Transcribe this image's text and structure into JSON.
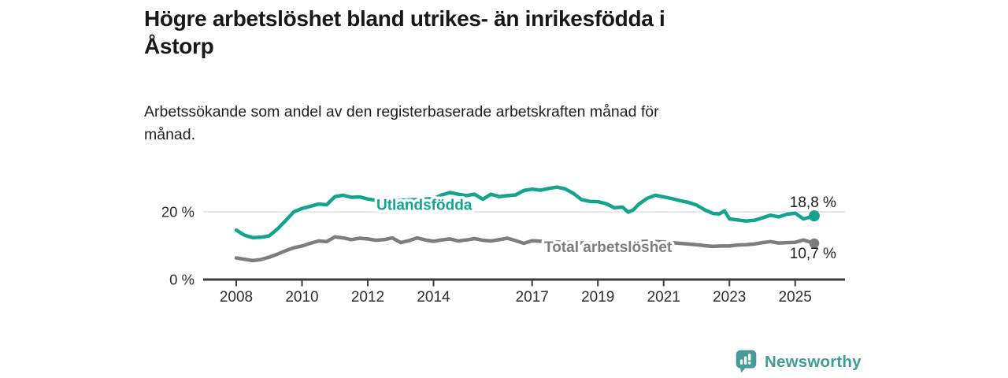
{
  "header": {
    "title_lines": [
      "Högre arbetslöshet bland utrikes- än inrikesfödda i",
      "Åstorp"
    ],
    "subtitle_lines": [
      "Arbetssökande som andel av den registerbaserade arbetskraften månad för",
      "månad."
    ]
  },
  "chart_data": {
    "type": "line",
    "title": "Högre arbetslöshet bland utrikes- än inrikesfödda i Åstorp",
    "subtitle": "Arbetssökande som andel av den registerbaserade arbetskraften månad för månad.",
    "unit": "%",
    "xlim": [
      2007.5,
      2026
    ],
    "ylim": [
      0,
      30
    ],
    "x_ticks": [
      2008,
      2010,
      2012,
      2014,
      2017,
      2019,
      2021,
      2023,
      2025
    ],
    "y_ticks": [
      {
        "value": 20,
        "label": "20 %",
        "gridline": true
      },
      {
        "value": 0,
        "label": "0 %",
        "gridline": false
      }
    ],
    "gridline_color": "#d9d9d9",
    "axis_color": "#3c3c3c",
    "legend_position": "inline labels on lines, end values at right",
    "series": [
      {
        "id": "utlandsfodda",
        "name": "Utlandsfödda",
        "color": "#14a38f",
        "end_value": 18.8,
        "end_value_label": "18,8 %",
        "points": [
          [
            2008,
            14.6
          ],
          [
            2008.25,
            13.1
          ],
          [
            2008.5,
            12.4
          ],
          [
            2008.75,
            12.5
          ],
          [
            2009,
            12.9
          ],
          [
            2009.25,
            14.9
          ],
          [
            2009.5,
            17.4
          ],
          [
            2009.75,
            20.0
          ],
          [
            2010,
            21.0
          ],
          [
            2010.25,
            21.6
          ],
          [
            2010.5,
            22.3
          ],
          [
            2010.75,
            22.1
          ],
          [
            2011,
            24.5
          ],
          [
            2011.25,
            24.9
          ],
          [
            2011.5,
            24.3
          ],
          [
            2011.75,
            24.4
          ],
          [
            2012,
            23.8
          ],
          [
            2012.25,
            23.4
          ],
          [
            2012.5,
            23.2
          ],
          [
            2012.75,
            23.3
          ],
          [
            2013,
            23.4
          ],
          [
            2013.25,
            23.5
          ],
          [
            2013.5,
            23.6
          ],
          [
            2013.75,
            23.8
          ],
          [
            2014,
            23.9
          ],
          [
            2014.25,
            25.0
          ],
          [
            2014.5,
            25.7
          ],
          [
            2014.75,
            25.2
          ],
          [
            2015,
            24.8
          ],
          [
            2015.25,
            25.2
          ],
          [
            2015.5,
            23.7
          ],
          [
            2015.75,
            25.2
          ],
          [
            2016,
            24.5
          ],
          [
            2016.25,
            24.8
          ],
          [
            2016.5,
            25.0
          ],
          [
            2016.75,
            26.3
          ],
          [
            2017,
            26.7
          ],
          [
            2017.25,
            26.4
          ],
          [
            2017.5,
            26.9
          ],
          [
            2017.75,
            27.3
          ],
          [
            2018,
            26.8
          ],
          [
            2018.25,
            25.5
          ],
          [
            2018.5,
            23.6
          ],
          [
            2018.75,
            23.1
          ],
          [
            2019,
            23.0
          ],
          [
            2019.25,
            22.4
          ],
          [
            2019.5,
            21.2
          ],
          [
            2019.75,
            21.4
          ],
          [
            2019.92,
            19.9
          ],
          [
            2020.08,
            20.6
          ],
          [
            2020.25,
            22.3
          ],
          [
            2020.5,
            24.0
          ],
          [
            2020.75,
            24.9
          ],
          [
            2021,
            24.4
          ],
          [
            2021.25,
            23.9
          ],
          [
            2021.5,
            23.3
          ],
          [
            2021.75,
            22.8
          ],
          [
            2022,
            22.0
          ],
          [
            2022.25,
            20.6
          ],
          [
            2022.5,
            19.5
          ],
          [
            2022.7,
            19.4
          ],
          [
            2022.85,
            20.3
          ],
          [
            2023,
            17.9
          ],
          [
            2023.25,
            17.6
          ],
          [
            2023.5,
            17.3
          ],
          [
            2023.75,
            17.5
          ],
          [
            2024,
            18.2
          ],
          [
            2024.25,
            19.0
          ],
          [
            2024.5,
            18.5
          ],
          [
            2024.75,
            19.3
          ],
          [
            2025,
            19.6
          ],
          [
            2025.25,
            17.9
          ],
          [
            2025.58,
            18.8
          ]
        ]
      },
      {
        "id": "total",
        "name": "Total arbetslöshet",
        "color": "#7d7d7d",
        "end_value": 10.7,
        "end_value_label": "10,7 %",
        "points": [
          [
            2008,
            6.4
          ],
          [
            2008.25,
            6.0
          ],
          [
            2008.5,
            5.6
          ],
          [
            2008.75,
            5.9
          ],
          [
            2009,
            6.6
          ],
          [
            2009.25,
            7.5
          ],
          [
            2009.5,
            8.5
          ],
          [
            2009.75,
            9.4
          ],
          [
            2010,
            9.9
          ],
          [
            2010.25,
            10.7
          ],
          [
            2010.5,
            11.4
          ],
          [
            2010.75,
            11.2
          ],
          [
            2011,
            12.6
          ],
          [
            2011.25,
            12.3
          ],
          [
            2011.5,
            11.8
          ],
          [
            2011.75,
            12.2
          ],
          [
            2012,
            12.0
          ],
          [
            2012.25,
            11.6
          ],
          [
            2012.5,
            11.8
          ],
          [
            2012.75,
            12.3
          ],
          [
            2013,
            10.9
          ],
          [
            2013.25,
            11.5
          ],
          [
            2013.5,
            12.3
          ],
          [
            2013.75,
            11.7
          ],
          [
            2014,
            11.3
          ],
          [
            2014.25,
            11.7
          ],
          [
            2014.5,
            12.0
          ],
          [
            2014.75,
            11.4
          ],
          [
            2015,
            11.7
          ],
          [
            2015.25,
            12.1
          ],
          [
            2015.5,
            11.6
          ],
          [
            2015.75,
            11.4
          ],
          [
            2016,
            11.8
          ],
          [
            2016.25,
            12.2
          ],
          [
            2016.5,
            11.5
          ],
          [
            2016.75,
            10.7
          ],
          [
            2017,
            11.5
          ],
          [
            2017.25,
            11.3
          ],
          [
            2017.5,
            11.3
          ],
          [
            2017.75,
            11.1
          ],
          [
            2018,
            11.0
          ],
          [
            2018.25,
            10.9
          ],
          [
            2018.5,
            10.8
          ],
          [
            2018.75,
            10.8
          ],
          [
            2019,
            10.7
          ],
          [
            2019.25,
            10.6
          ],
          [
            2019.5,
            10.6
          ],
          [
            2019.75,
            10.7
          ],
          [
            2020,
            10.9
          ],
          [
            2020.25,
            11.2
          ],
          [
            2020.5,
            11.3
          ],
          [
            2020.75,
            11.2
          ],
          [
            2021,
            11.1
          ],
          [
            2021.25,
            10.9
          ],
          [
            2021.5,
            10.7
          ],
          [
            2021.75,
            10.5
          ],
          [
            2022,
            10.3
          ],
          [
            2022.25,
            10.0
          ],
          [
            2022.5,
            9.8
          ],
          [
            2022.75,
            9.9
          ],
          [
            2023,
            9.9
          ],
          [
            2023.25,
            10.2
          ],
          [
            2023.5,
            10.3
          ],
          [
            2023.75,
            10.5
          ],
          [
            2024,
            10.9
          ],
          [
            2024.25,
            11.2
          ],
          [
            2024.5,
            10.8
          ],
          [
            2024.75,
            10.9
          ],
          [
            2025,
            11.0
          ],
          [
            2025.25,
            11.7
          ],
          [
            2025.58,
            10.7
          ]
        ]
      }
    ]
  },
  "footer": {
    "brand": "Newsworthy",
    "brand_color": "#3f9c96",
    "logo_icon": "bar-chart-speech-bubble"
  }
}
